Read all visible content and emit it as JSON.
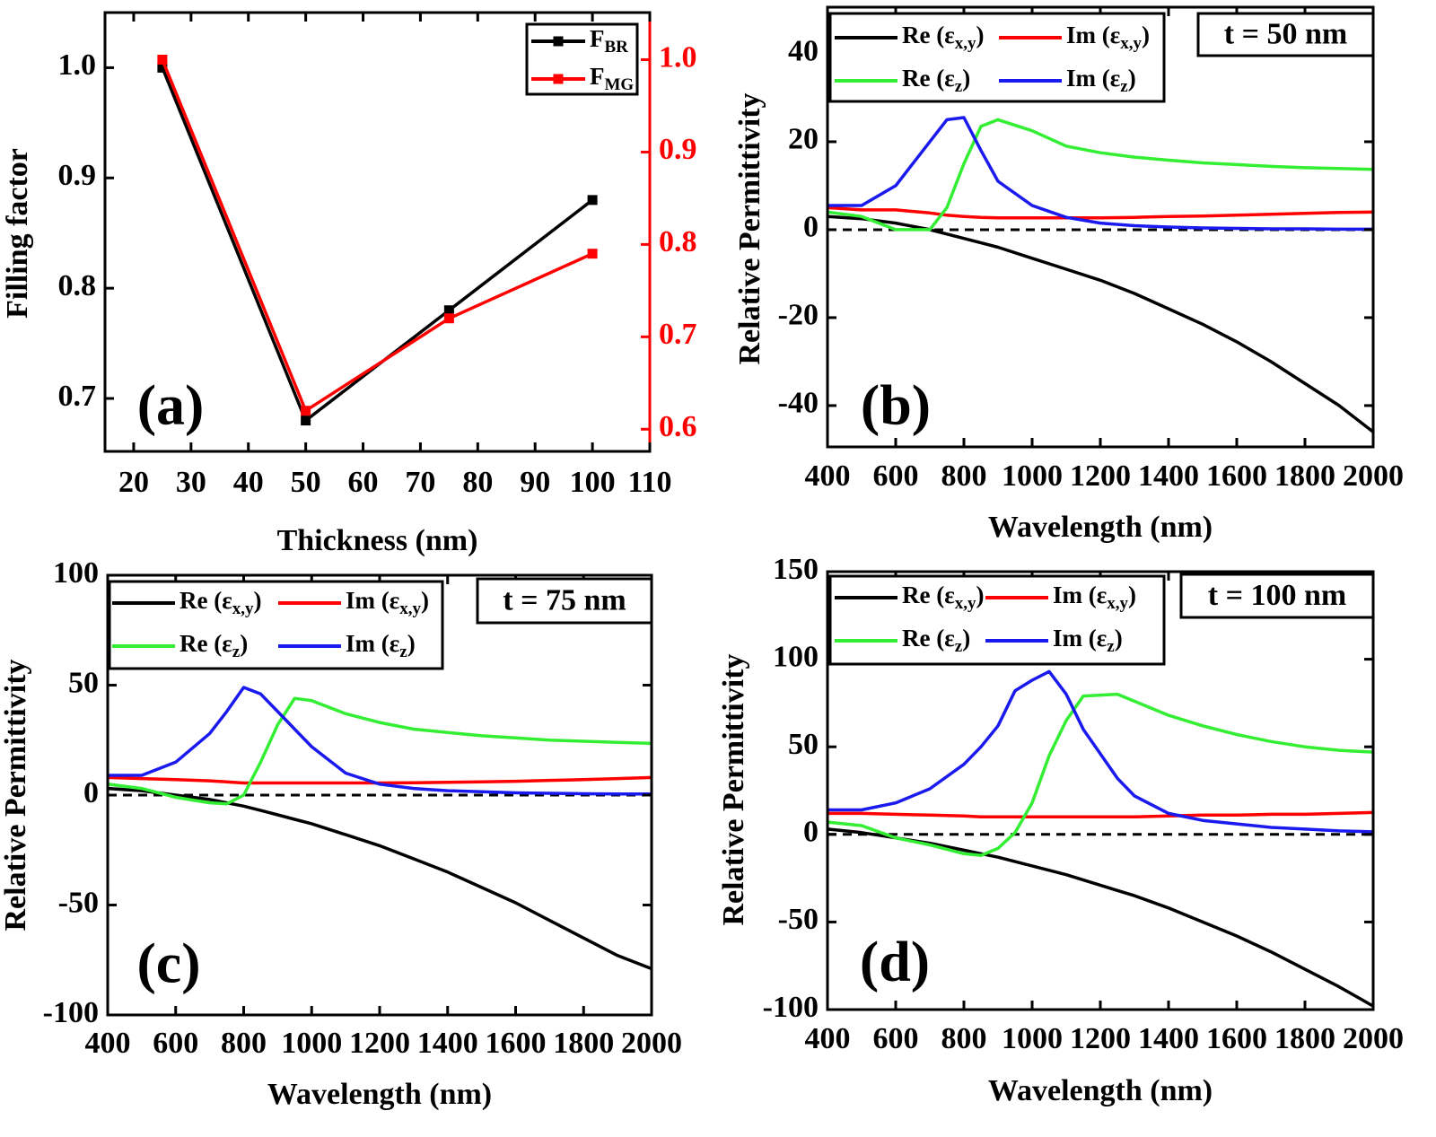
{
  "chart_data": [
    {
      "type": "line",
      "panel_label": "(a)",
      "xlabel": "Thickness (nm)",
      "ylabel": "Filling factor",
      "x": [
        25,
        50,
        75,
        100
      ],
      "markers": true,
      "series": [
        {
          "name": [
            "F",
            "BR"
          ],
          "color": "#000000",
          "values": [
            1.0,
            0.68,
            0.78,
            0.88
          ],
          "axis": "y"
        },
        {
          "name": [
            "F",
            "MG"
          ],
          "color": "#ff0000",
          "values": [
            1.0,
            0.62,
            0.72,
            0.79
          ],
          "axis": "y2"
        }
      ],
      "xlim": [
        15,
        110
      ],
      "xticks": [
        20,
        30,
        40,
        50,
        60,
        70,
        80,
        90,
        100,
        110
      ],
      "ylim": [
        0.652,
        1.05
      ],
      "yticks": [
        0.7,
        0.8,
        0.9,
        {
          "value": 1,
          "label": "1.0"
        }
      ],
      "y2lim": [
        0.576,
        1.051
      ],
      "y2ticks": [
        0.6,
        0.7,
        0.8,
        0.9,
        {
          "value": 1,
          "label": "1.0"
        }
      ],
      "y2color": "#ff0000"
    },
    {
      "type": "line",
      "panel_label": "(b)",
      "annotation": "t = 50 nm",
      "xlabel": "Wavelength (nm)",
      "ylabel": "Relative Permittivity",
      "x": [
        400,
        500,
        600,
        700,
        750,
        800,
        850,
        900,
        1000,
        1100,
        1200,
        1300,
        1400,
        1500,
        1600,
        1700,
        1800,
        1900,
        2000
      ],
      "series": [
        {
          "name": [
            "Re (ε",
            "x,y",
            ")"
          ],
          "color": "#000000",
          "values": [
            3,
            2.5,
            1.5,
            0,
            -1,
            -2,
            -3,
            -4,
            -6.5,
            -9,
            -11.5,
            -14.5,
            -18,
            -21.5,
            -25.5,
            -30,
            -35,
            -40,
            -46
          ]
        },
        {
          "name": [
            "Im (ε",
            "x,y",
            ")"
          ],
          "color": "#ff0000",
          "values": [
            5,
            4.5,
            4.5,
            3.8,
            3.3,
            3,
            2.8,
            2.7,
            2.7,
            2.7,
            2.7,
            2.8,
            3,
            3.1,
            3.3,
            3.5,
            3.7,
            3.9,
            4
          ]
        },
        {
          "name": [
            "Re (ε",
            "z",
            ")"
          ],
          "color": "#33ee33",
          "values": [
            4,
            3,
            0,
            0,
            5,
            15,
            23.5,
            25,
            22.5,
            19,
            17.5,
            16.5,
            15.8,
            15.2,
            14.8,
            14.4,
            14.1,
            13.9,
            13.7
          ]
        },
        {
          "name": [
            "Im (ε",
            "z",
            ")"
          ],
          "color": "#1a1aee",
          "values": [
            5.5,
            5.5,
            10,
            20,
            25,
            25.5,
            18,
            11,
            5.5,
            2.8,
            1.5,
            0.9,
            0.6,
            0.4,
            0.3,
            0.2,
            0.2,
            0.1,
            0.1
          ]
        }
      ],
      "xlim": [
        400,
        2000
      ],
      "xticks": [
        400,
        600,
        800,
        1000,
        1200,
        1400,
        1600,
        1800,
        2000
      ],
      "ylim": [
        -49.4,
        50.6
      ],
      "yticks": [
        -40,
        -20,
        0,
        20,
        40
      ],
      "hlines": [
        0
      ]
    },
    {
      "type": "line",
      "panel_label": "(c)",
      "annotation": "t = 75 nm",
      "xlabel": "Wavelength (nm)",
      "ylabel": "Relative Permittivity",
      "x": [
        400,
        500,
        600,
        700,
        750,
        800,
        850,
        900,
        950,
        1000,
        1100,
        1200,
        1300,
        1400,
        1500,
        1600,
        1700,
        1800,
        1900,
        2000
      ],
      "series": [
        {
          "name": [
            "Re (ε",
            "x,y",
            ")"
          ],
          "color": "#000000",
          "values": [
            3,
            2,
            0,
            -2,
            -3.5,
            -5,
            -7,
            -9,
            -11,
            -13,
            -18,
            -23,
            -29,
            -35,
            -42,
            -49,
            -57,
            -65,
            -73,
            -79
          ]
        },
        {
          "name": [
            "Im (ε",
            "x,y",
            ")"
          ],
          "color": "#ff0000",
          "values": [
            8,
            7.5,
            7,
            6.5,
            6,
            5.5,
            5.5,
            5.5,
            5.5,
            5.5,
            5.5,
            5.5,
            5.6,
            5.8,
            6,
            6.3,
            6.7,
            7,
            7.5,
            8
          ]
        },
        {
          "name": [
            "Re (ε",
            "z",
            ")"
          ],
          "color": "#33ee33",
          "values": [
            5,
            3,
            -1,
            -3.5,
            -4,
            0,
            15,
            32,
            44,
            43,
            37,
            33,
            30,
            28.5,
            27,
            26,
            25,
            24.5,
            24,
            23.5
          ]
        },
        {
          "name": [
            "Im (ε",
            "z",
            ")"
          ],
          "color": "#1a1aee",
          "values": [
            9,
            9,
            15,
            28,
            38,
            49,
            46,
            38,
            30,
            22,
            10,
            5,
            3,
            2,
            1.5,
            1,
            0.8,
            0.6,
            0.5,
            0.5
          ]
        }
      ],
      "xlim": [
        400,
        2000
      ],
      "xticks": [
        400,
        600,
        800,
        1000,
        1200,
        1400,
        1600,
        1800,
        2000
      ],
      "ylim": [
        -100,
        100
      ],
      "yticks": [
        -100,
        -50,
        0,
        50,
        100
      ],
      "hlines": [
        0
      ]
    },
    {
      "type": "line",
      "panel_label": "(d)",
      "annotation": "t = 100 nm",
      "xlabel": "Wavelength (nm)",
      "ylabel": "Relative Permittivity",
      "x": [
        400,
        500,
        600,
        700,
        800,
        850,
        900,
        950,
        1000,
        1050,
        1100,
        1150,
        1250,
        1300,
        1400,
        1500,
        1600,
        1700,
        1800,
        1900,
        2000
      ],
      "series": [
        {
          "name": [
            "Re (ε",
            "x,y",
            ")"
          ],
          "color": "#000000",
          "values": [
            3,
            1,
            -2,
            -5,
            -9,
            -11,
            -13,
            -15.5,
            -18,
            -20.5,
            -23,
            -26,
            -32,
            -35,
            -42,
            -50,
            -58,
            -67,
            -77,
            -87,
            -98
          ]
        },
        {
          "name": [
            "Im (ε",
            "x,y",
            ")"
          ],
          "color": "#ff0000",
          "values": [
            12,
            12,
            11.5,
            11,
            10.5,
            10,
            10,
            10,
            10,
            10,
            10,
            10,
            10,
            10,
            10.5,
            11,
            11,
            11.5,
            11.5,
            12,
            12.5
          ]
        },
        {
          "name": [
            "Re (ε",
            "z",
            ")"
          ],
          "color": "#33ee33",
          "values": [
            7,
            5,
            -2,
            -6,
            -11,
            -12,
            -8,
            1,
            18,
            45,
            65,
            79,
            80,
            76,
            68,
            62,
            57,
            53,
            50,
            48,
            47
          ]
        },
        {
          "name": [
            "Im (ε",
            "z",
            ")"
          ],
          "color": "#1a1aee",
          "values": [
            14,
            14,
            18,
            26,
            40,
            50,
            62,
            82,
            88,
            93,
            80,
            60,
            32,
            22,
            12,
            8,
            6,
            4,
            3,
            2,
            1.5
          ]
        }
      ],
      "xlim": [
        400,
        2000
      ],
      "xticks": [
        400,
        600,
        800,
        1000,
        1200,
        1400,
        1600,
        1800,
        2000
      ],
      "ylim": [
        -100,
        150
      ],
      "yticks": [
        -100,
        -50,
        0,
        50,
        100,
        150
      ],
      "hlines": [
        0
      ]
    }
  ]
}
